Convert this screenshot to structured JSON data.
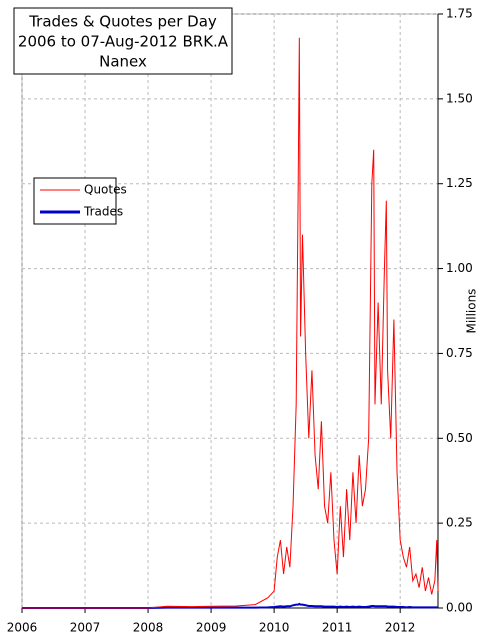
{
  "chart_data": {
    "type": "line",
    "title": [
      "Trades & Quotes per Day",
      "2006 to 07-Aug-2012 BRK.A",
      "Nanex"
    ],
    "y_axis_label": "Millions",
    "x": [
      2006.0,
      2007.0,
      2008.0,
      2008.3,
      2008.7,
      2009.0,
      2009.4,
      2009.7,
      2009.9,
      2010.0,
      2010.05,
      2010.1,
      2010.15,
      2010.2,
      2010.25,
      2010.3,
      2010.35,
      2010.38,
      2010.4,
      2010.42,
      2010.45,
      2010.5,
      2010.55,
      2010.6,
      2010.65,
      2010.7,
      2010.75,
      2010.8,
      2010.85,
      2010.9,
      2010.95,
      2011.0,
      2011.05,
      2011.1,
      2011.15,
      2011.2,
      2011.25,
      2011.3,
      2011.35,
      2011.4,
      2011.45,
      2011.5,
      2011.55,
      2011.58,
      2011.6,
      2011.65,
      2011.7,
      2011.75,
      2011.78,
      2011.8,
      2011.85,
      2011.9,
      2011.95,
      2012.0,
      2012.05,
      2012.1,
      2012.15,
      2012.2,
      2012.25,
      2012.3,
      2012.35,
      2012.4,
      2012.45,
      2012.5,
      2012.55,
      2012.58,
      2012.6
    ],
    "series": [
      {
        "name": "Quotes",
        "color": "#ff0000",
        "values": [
          0,
          0,
          0,
          0.005,
          0.004,
          0.005,
          0.006,
          0.01,
          0.03,
          0.05,
          0.15,
          0.2,
          0.1,
          0.18,
          0.12,
          0.3,
          0.6,
          1.2,
          1.68,
          0.8,
          1.1,
          0.75,
          0.5,
          0.7,
          0.45,
          0.35,
          0.55,
          0.3,
          0.25,
          0.4,
          0.2,
          0.1,
          0.3,
          0.15,
          0.35,
          0.2,
          0.4,
          0.25,
          0.45,
          0.3,
          0.35,
          0.5,
          1.25,
          1.35,
          0.6,
          0.9,
          0.6,
          1.0,
          1.2,
          0.7,
          0.5,
          0.85,
          0.4,
          0.2,
          0.15,
          0.12,
          0.18,
          0.08,
          0.1,
          0.06,
          0.12,
          0.05,
          0.09,
          0.04,
          0.08,
          0.2,
          0.05
        ]
      },
      {
        "name": "Trades",
        "color": "#0000cc",
        "values": [
          0,
          0,
          0,
          0.001,
          0.001,
          0.001,
          0.001,
          0.001,
          0.002,
          0.003,
          0.004,
          0.005,
          0.004,
          0.005,
          0.005,
          0.008,
          0.01,
          0.01,
          0.012,
          0.01,
          0.01,
          0.008,
          0.006,
          0.006,
          0.005,
          0.005,
          0.005,
          0.004,
          0.004,
          0.004,
          0.004,
          0.003,
          0.004,
          0.003,
          0.004,
          0.003,
          0.004,
          0.003,
          0.004,
          0.003,
          0.003,
          0.004,
          0.006,
          0.006,
          0.005,
          0.005,
          0.005,
          0.005,
          0.005,
          0.004,
          0.004,
          0.004,
          0.003,
          0.003,
          0.003,
          0.002,
          0.003,
          0.002,
          0.002,
          0.002,
          0.002,
          0.002,
          0.002,
          0.002,
          0.002,
          0.002,
          0.002
        ]
      }
    ],
    "xlim": [
      2006,
      2012.6
    ],
    "xticks": [
      2006,
      2007,
      2008,
      2009,
      2010,
      2011,
      2012
    ],
    "ylim": [
      0,
      1.75
    ],
    "yticks": [
      {
        "value": 0,
        "label": "0.00"
      },
      {
        "value": 0.25,
        "label": "0.25"
      },
      {
        "value": 0.5,
        "label": "0.50"
      },
      {
        "value": 0.75,
        "label": "0.75"
      },
      {
        "value": 1,
        "label": "1.00"
      },
      {
        "value": 1.25,
        "label": "1.25"
      },
      {
        "value": 1.5,
        "label": "1.50"
      },
      {
        "value": 1.75,
        "label": "1.75"
      }
    ],
    "y_axis_side": "right",
    "grid": true
  }
}
